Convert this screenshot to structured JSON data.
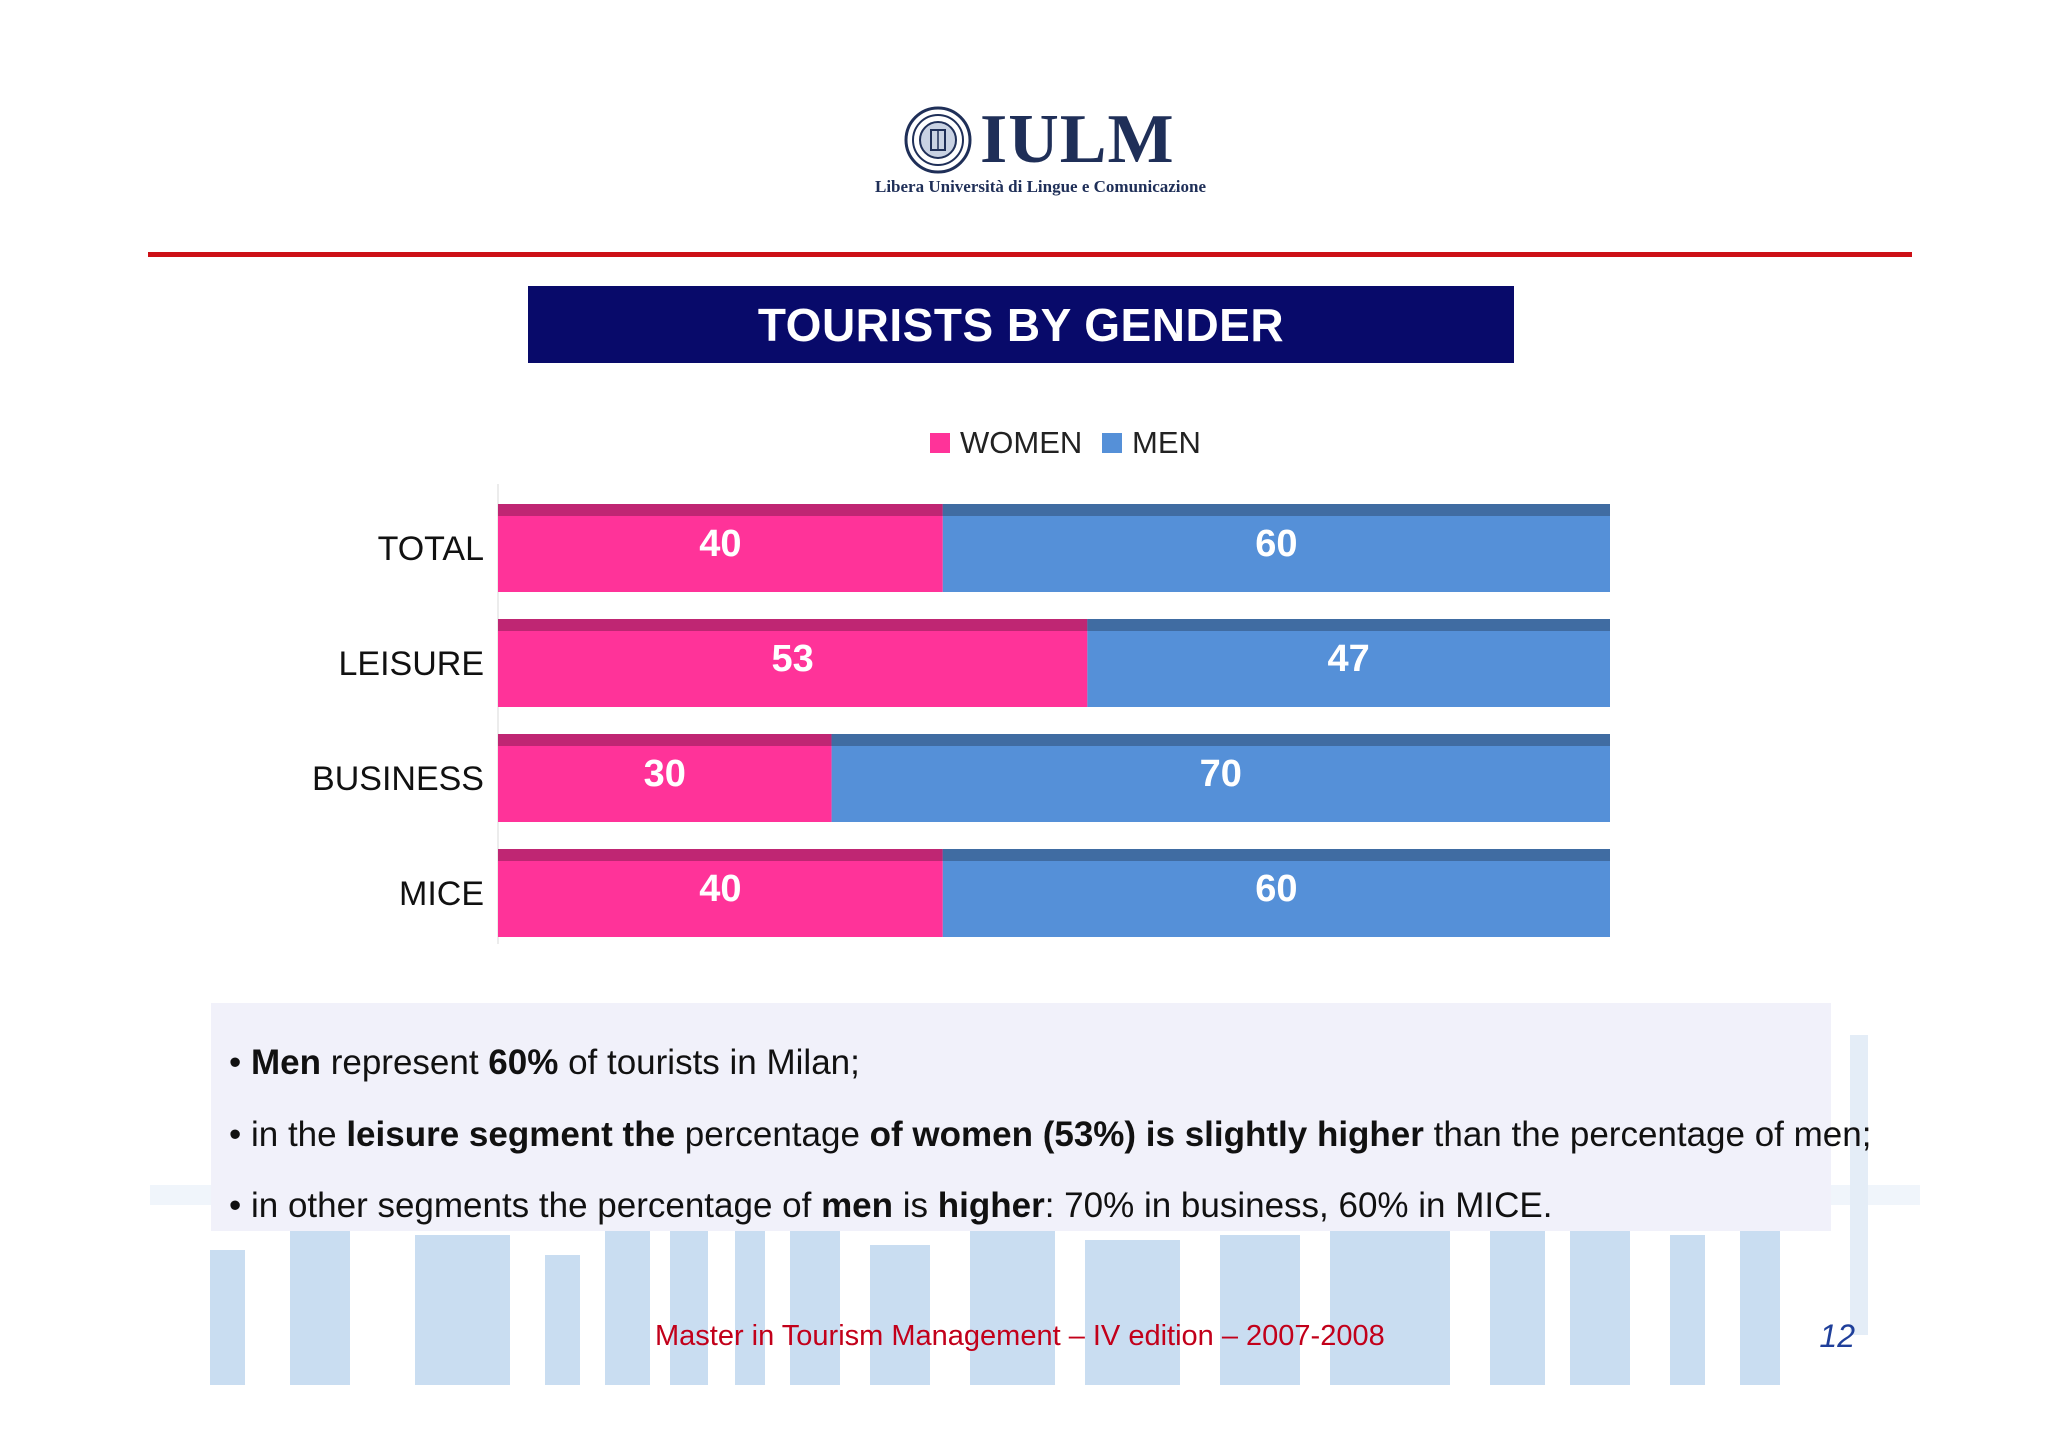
{
  "logo": {
    "name": "IULM",
    "subtitle": "Libera Università di Lingue e Comunicazione"
  },
  "title": "TOURISTS BY GENDER",
  "chart_data": {
    "type": "bar",
    "orientation": "horizontal",
    "stacked": true,
    "categories": [
      "TOTAL",
      "LEISURE",
      "BUSINESS",
      "MICE"
    ],
    "series": [
      {
        "name": "WOMEN",
        "values": [
          40,
          53,
          30,
          40
        ],
        "color": "#ff3399"
      },
      {
        "name": "MEN",
        "values": [
          60,
          47,
          70,
          60
        ],
        "color": "#5590d8"
      }
    ],
    "xlim": [
      0,
      100
    ],
    "legend_position": "top",
    "grid": false,
    "data_labels": true
  },
  "notes": [
    [
      {
        "text": "• ",
        "bold": false
      },
      {
        "text": "Men",
        "bold": true
      },
      {
        "text": " represent ",
        "bold": false
      },
      {
        "text": "60%",
        "bold": true
      },
      {
        "text": " of tourists in Milan;",
        "bold": false
      }
    ],
    [
      {
        "text": "• in the ",
        "bold": false
      },
      {
        "text": "leisure segment the",
        "bold": true
      },
      {
        "text": " percentage ",
        "bold": false
      },
      {
        "text": "of women (53%) is slightly higher",
        "bold": true
      },
      {
        "text": " than the percentage of men;",
        "bold": false
      }
    ],
    [
      {
        "text": "• in other segments the percentage of ",
        "bold": false
      },
      {
        "text": "men",
        "bold": true
      },
      {
        "text": " is ",
        "bold": false
      },
      {
        "text": "higher",
        "bold": true
      },
      {
        "text": ": 70% in business, 60% in MICE.",
        "bold": false
      }
    ]
  ],
  "footer": "Master in Tourism Management – IV edition – 2007-2008",
  "page_number": "12"
}
